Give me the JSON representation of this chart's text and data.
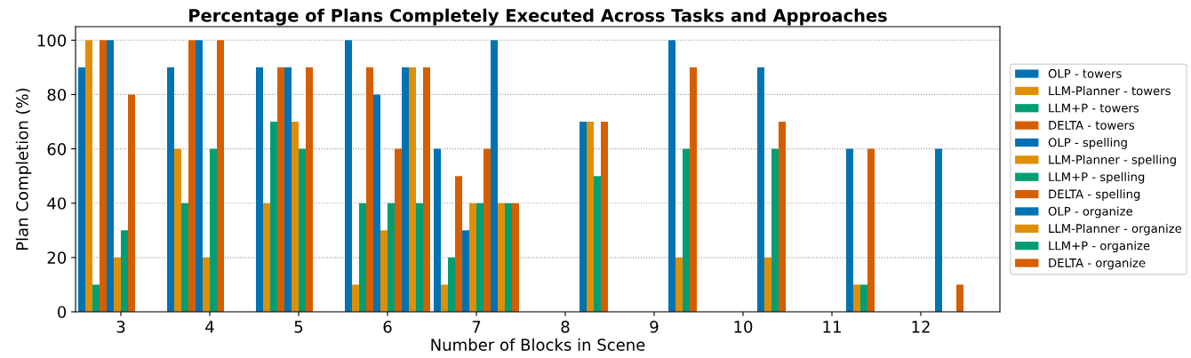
{
  "chart_data": {
    "type": "bar",
    "title": "Percentage of Plans Completely Executed Across Tasks and Approaches",
    "xlabel": "Number of Blocks in Scene",
    "ylabel": "Plan Completion (%)",
    "categories": [
      "3",
      "4",
      "5",
      "6",
      "7",
      "8",
      "9",
      "10",
      "11",
      "12"
    ],
    "series": [
      {
        "name": "OLP - towers",
        "color": "#0173b2",
        "values": [
          90,
          90,
          90,
          100,
          60,
          null,
          null,
          null,
          null,
          null
        ]
      },
      {
        "name": "LLM-Planner - towers",
        "color": "#de8f05",
        "values": [
          100,
          60,
          40,
          10,
          10,
          null,
          null,
          null,
          null,
          null
        ]
      },
      {
        "name": "LLM+P - towers",
        "color": "#029e73",
        "values": [
          10,
          40,
          70,
          40,
          20,
          null,
          null,
          null,
          null,
          null
        ]
      },
      {
        "name": "DELTA - towers",
        "color": "#d55e00",
        "values": [
          100,
          100,
          90,
          90,
          50,
          null,
          null,
          null,
          null,
          null
        ]
      },
      {
        "name": "OLP - spelling",
        "color": "#0173b2",
        "values": [
          100,
          100,
          90,
          80,
          30,
          null,
          null,
          null,
          null,
          null
        ]
      },
      {
        "name": "LLM-Planner - spelling",
        "color": "#de8f05",
        "values": [
          20,
          20,
          70,
          30,
          40,
          null,
          null,
          null,
          null,
          null
        ]
      },
      {
        "name": "LLM+P - spelling",
        "color": "#029e73",
        "values": [
          30,
          60,
          60,
          40,
          40,
          null,
          null,
          null,
          null,
          null
        ]
      },
      {
        "name": "DELTA - spelling",
        "color": "#d55e00",
        "values": [
          80,
          100,
          90,
          60,
          60,
          null,
          null,
          null,
          null,
          null
        ]
      },
      {
        "name": "OLP - organize",
        "color": "#0173b2",
        "values": [
          null,
          null,
          null,
          90,
          100,
          70,
          100,
          90,
          60,
          60
        ]
      },
      {
        "name": "LLM-Planner - organize",
        "color": "#de8f05",
        "values": [
          null,
          null,
          null,
          90,
          40,
          70,
          20,
          20,
          10,
          0
        ]
      },
      {
        "name": "LLM+P - organize",
        "color": "#029e73",
        "values": [
          null,
          null,
          null,
          40,
          40,
          50,
          60,
          60,
          10,
          0
        ]
      },
      {
        "name": "DELTA - organize",
        "color": "#d55e00",
        "values": [
          null,
          null,
          null,
          90,
          40,
          70,
          90,
          70,
          60,
          10
        ]
      }
    ],
    "ylim": [
      0,
      105
    ],
    "yticks": [
      0,
      20,
      40,
      60,
      80,
      100
    ],
    "grid": "y",
    "legend": "right"
  }
}
